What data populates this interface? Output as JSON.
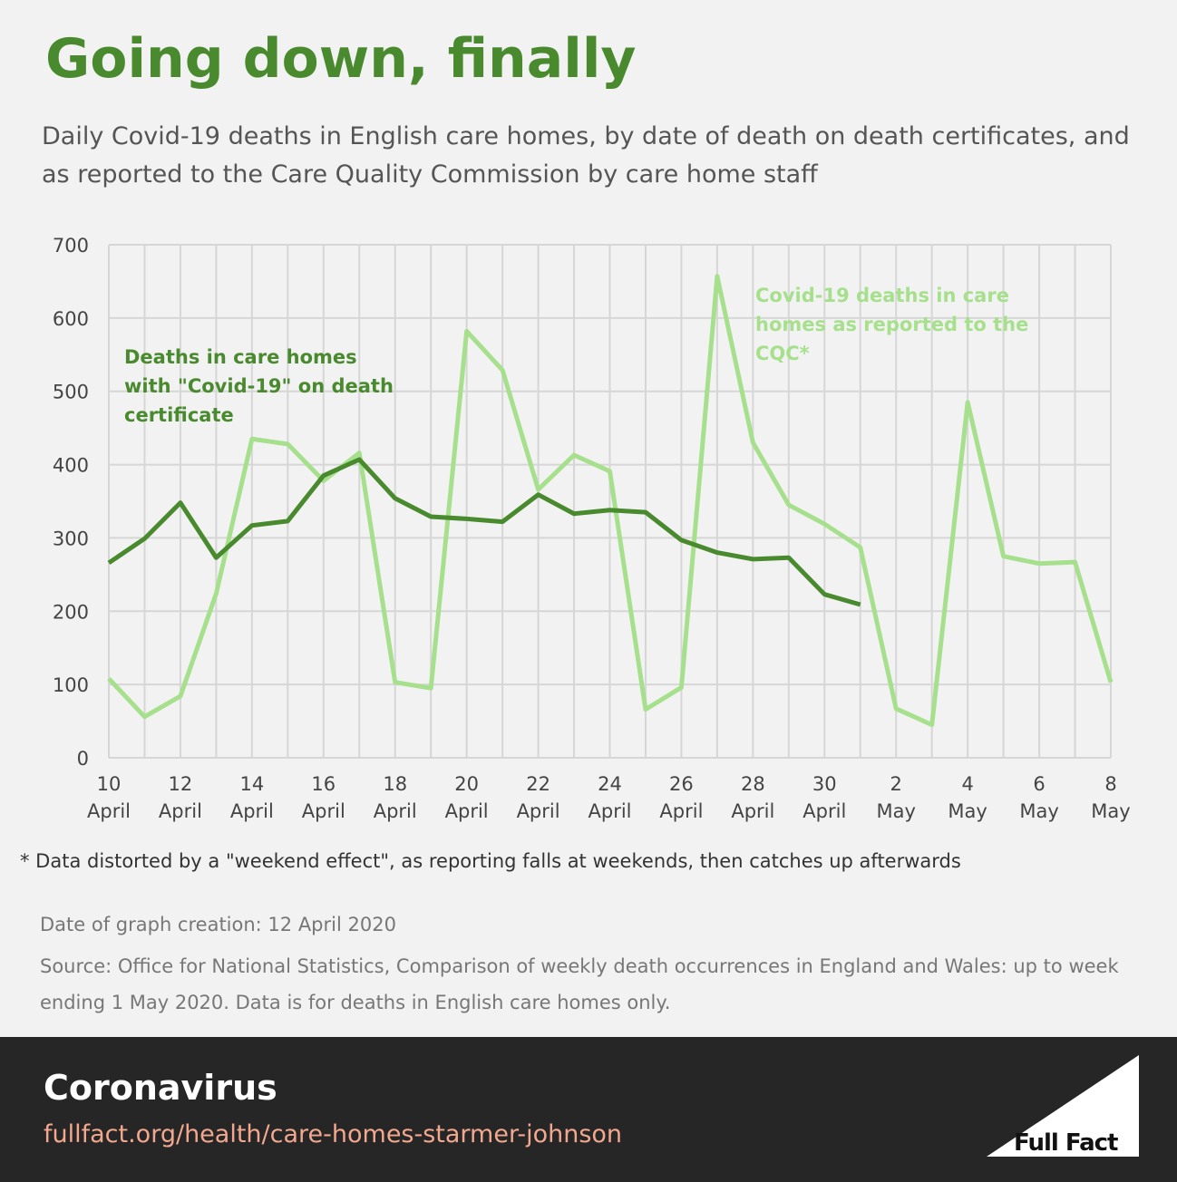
{
  "chart_data": {
    "type": "line",
    "title": "Going down, finally",
    "subtitle": "Daily Covid-19 deaths in English care homes, by date of death on death certificates, and as reported to the Care Quality Commission by care home staff",
    "categories": [
      "10 April",
      null,
      "12 April",
      null,
      "14 April",
      null,
      "16 April",
      null,
      "18 April",
      null,
      "20 April",
      null,
      "22 April",
      null,
      "24 April",
      null,
      "26 April",
      null,
      "28 April",
      null,
      "30 April",
      null,
      "2 May",
      null,
      "4 May",
      null,
      "6 May",
      null,
      "8 May"
    ],
    "series": [
      {
        "name": "Deaths in care homes with \"Covid-19\" on death certificate",
        "color": "#4a8a2e",
        "values": [
          266,
          299,
          348,
          273,
          317,
          323,
          385,
          407,
          354,
          329,
          326,
          322,
          359,
          333,
          338,
          335,
          297,
          280,
          271,
          273,
          223,
          209,
          null,
          null,
          null,
          null,
          null,
          null,
          null
        ]
      },
      {
        "name": "Covid-19 deaths in care homes as reported to the CQC*",
        "color": "#a6e08c",
        "values": [
          108,
          56,
          84,
          224,
          435,
          428,
          378,
          416,
          103,
          95,
          582,
          529,
          366,
          413,
          391,
          66,
          96,
          657,
          430,
          345,
          319,
          287,
          67,
          45,
          485,
          275,
          265,
          267,
          103
        ]
      }
    ],
    "ylim": [
      0,
      700
    ],
    "yticks": [
      0,
      100,
      200,
      300,
      400,
      500,
      600,
      700
    ],
    "grid": true,
    "footnote": "* Data distorted by a \"weekend effect\", as reporting falls at weekends, then catches up afterwards",
    "created": "Date of graph creation: 12 April 2020",
    "source": "Source: Office for National Statistics, Comparison of weekly death occurrences in England and Wales: up to week ending 1 May 2020. Data is for deaths in English care homes only.",
    "footer_title": "Coronavirus",
    "footer_url": "fullfact.org/health/care-homes-starmer-johnson",
    "logo": "Full Fact"
  }
}
